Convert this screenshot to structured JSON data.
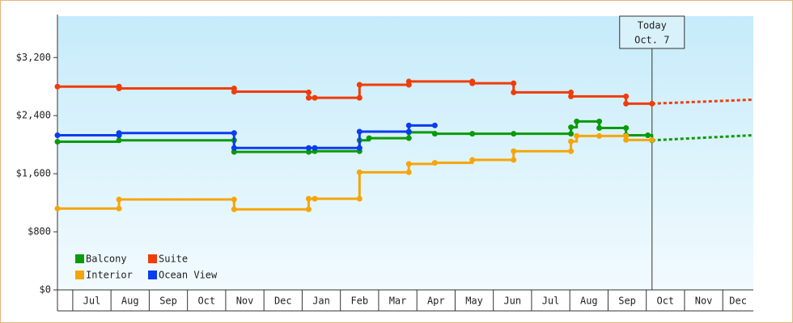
{
  "chart_data": {
    "type": "step-line",
    "xlim": [
      -0.4,
      17.8
    ],
    "xticks": [
      {
        "value": 0,
        "label": "Jul"
      },
      {
        "value": 1,
        "label": "Aug"
      },
      {
        "value": 2,
        "label": "Sep"
      },
      {
        "value": 3,
        "label": "Oct"
      },
      {
        "value": 4,
        "label": "Nov"
      },
      {
        "value": 5,
        "label": "Dec"
      },
      {
        "value": 6,
        "label": "Jan"
      },
      {
        "value": 7,
        "label": "Feb"
      },
      {
        "value": 8,
        "label": "Mar"
      },
      {
        "value": 9,
        "label": "Apr"
      },
      {
        "value": 10,
        "label": "May"
      },
      {
        "value": 11,
        "label": "Jun"
      },
      {
        "value": 12,
        "label": "Jul"
      },
      {
        "value": 13,
        "label": "Aug"
      },
      {
        "value": 14,
        "label": "Sep"
      },
      {
        "value": 15,
        "label": "Oct"
      },
      {
        "value": 16,
        "label": "Nov"
      },
      {
        "value": 17,
        "label": "Dec"
      }
    ],
    "ylim": [
      0,
      3770
    ],
    "yticks": [
      {
        "value": 0,
        "label": "$0"
      },
      {
        "value": 800,
        "label": "$800"
      },
      {
        "value": 1600,
        "label": "$1,600"
      },
      {
        "value": 2400,
        "label": "$2,400"
      },
      {
        "value": 3200,
        "label": "$3,200"
      }
    ],
    "today": {
      "x": 15.15,
      "label": "Today",
      "date": "Oct. 7"
    },
    "legend": "bottom-left",
    "series": [
      {
        "name": "Balcony",
        "color": "#0a9a0a",
        "x": [
          -0.4,
          1.21,
          4.22,
          4.22,
          6.17,
          6.33,
          7.5,
          7.5,
          7.75,
          8.79,
          8.79,
          9.47,
          10.45,
          11.53,
          13.03,
          13.03,
          13.18,
          13.77,
          13.77,
          14.47,
          14.47,
          15.04,
          15.15,
          17.8
        ],
        "values": [
          2040,
          2060,
          2060,
          1900,
          1900,
          1910,
          1910,
          2060,
          2090,
          2090,
          2170,
          2150,
          2150,
          2150,
          2150,
          2240,
          2320,
          2320,
          2230,
          2230,
          2130,
          2130,
          2060,
          2130
        ]
      },
      {
        "name": "Suite",
        "color": "#f03c0a",
        "x": [
          -0.4,
          1.21,
          1.21,
          4.22,
          4.22,
          6.17,
          6.17,
          6.33,
          7.5,
          7.5,
          8.79,
          8.79,
          10.45,
          10.45,
          11.53,
          11.53,
          13.03,
          13.03,
          14.47,
          14.47,
          15.15,
          17.8
        ],
        "values": [
          2800,
          2800,
          2775,
          2775,
          2730,
          2720,
          2645,
          2645,
          2645,
          2825,
          2825,
          2870,
          2870,
          2845,
          2845,
          2720,
          2720,
          2665,
          2665,
          2565,
          2565,
          2620
        ]
      },
      {
        "name": "Interior",
        "color": "#f5a50a",
        "x": [
          -0.4,
          1.21,
          1.21,
          4.22,
          4.22,
          6.17,
          6.17,
          6.33,
          7.5,
          7.5,
          8.79,
          8.79,
          9.47,
          10.45,
          11.53,
          11.53,
          13.03,
          13.03,
          13.18,
          13.77,
          14.47,
          14.47,
          15.15
        ],
        "values": [
          1120,
          1120,
          1245,
          1245,
          1110,
          1110,
          1255,
          1255,
          1255,
          1620,
          1620,
          1735,
          1750,
          1790,
          1790,
          1910,
          1910,
          2045,
          2120,
          2120,
          2120,
          2065,
          2065
        ]
      },
      {
        "name": "Ocean View",
        "color": "#0a3cf0",
        "x": [
          -0.4,
          1.21,
          1.21,
          4.22,
          4.22,
          6.17,
          6.33,
          7.5,
          7.5,
          8.79,
          8.79,
          9.47
        ],
        "values": [
          2130,
          2130,
          2160,
          2160,
          1955,
          1955,
          1955,
          1955,
          2180,
          2180,
          2265,
          2265
        ]
      }
    ]
  }
}
